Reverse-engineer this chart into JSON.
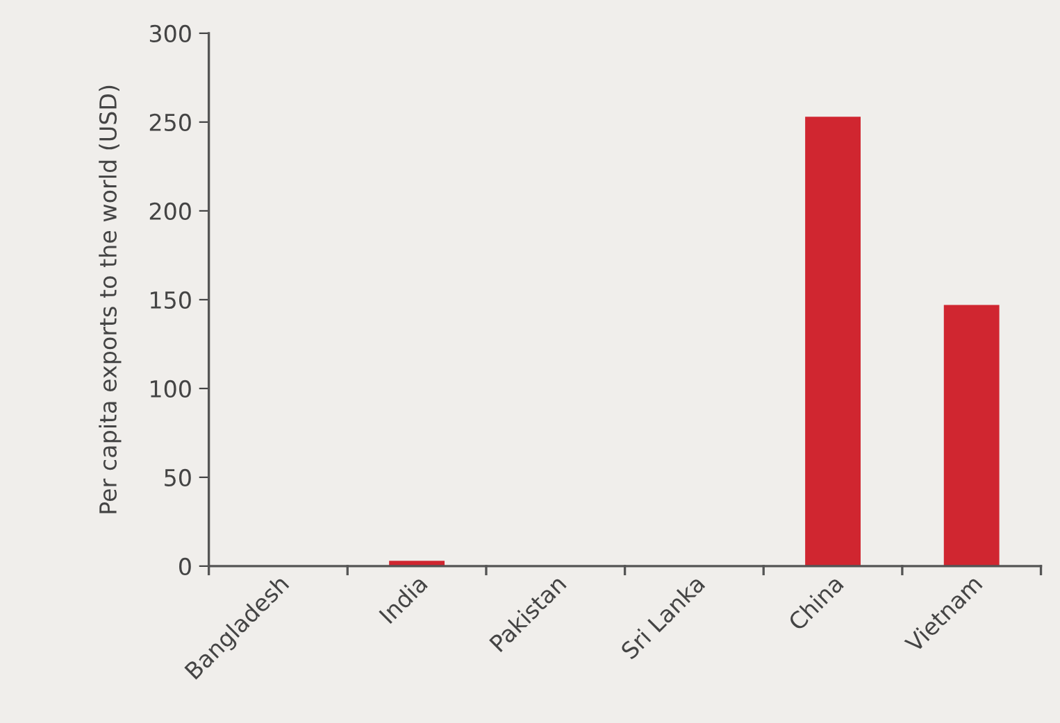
{
  "chart_data": {
    "type": "bar",
    "ylabel": "Per capita exports to the world (USD)",
    "categories": [
      "Bangladesh",
      "India",
      "Pakistan",
      "Sri Lanka",
      "China",
      "Vietnam"
    ],
    "values": [
      0,
      3,
      0,
      0,
      253,
      147
    ],
    "color": "#d02630",
    "ylim": [
      0,
      300
    ],
    "yticks": [
      0,
      50,
      100,
      150,
      200,
      250,
      300
    ],
    "grid": false
  }
}
